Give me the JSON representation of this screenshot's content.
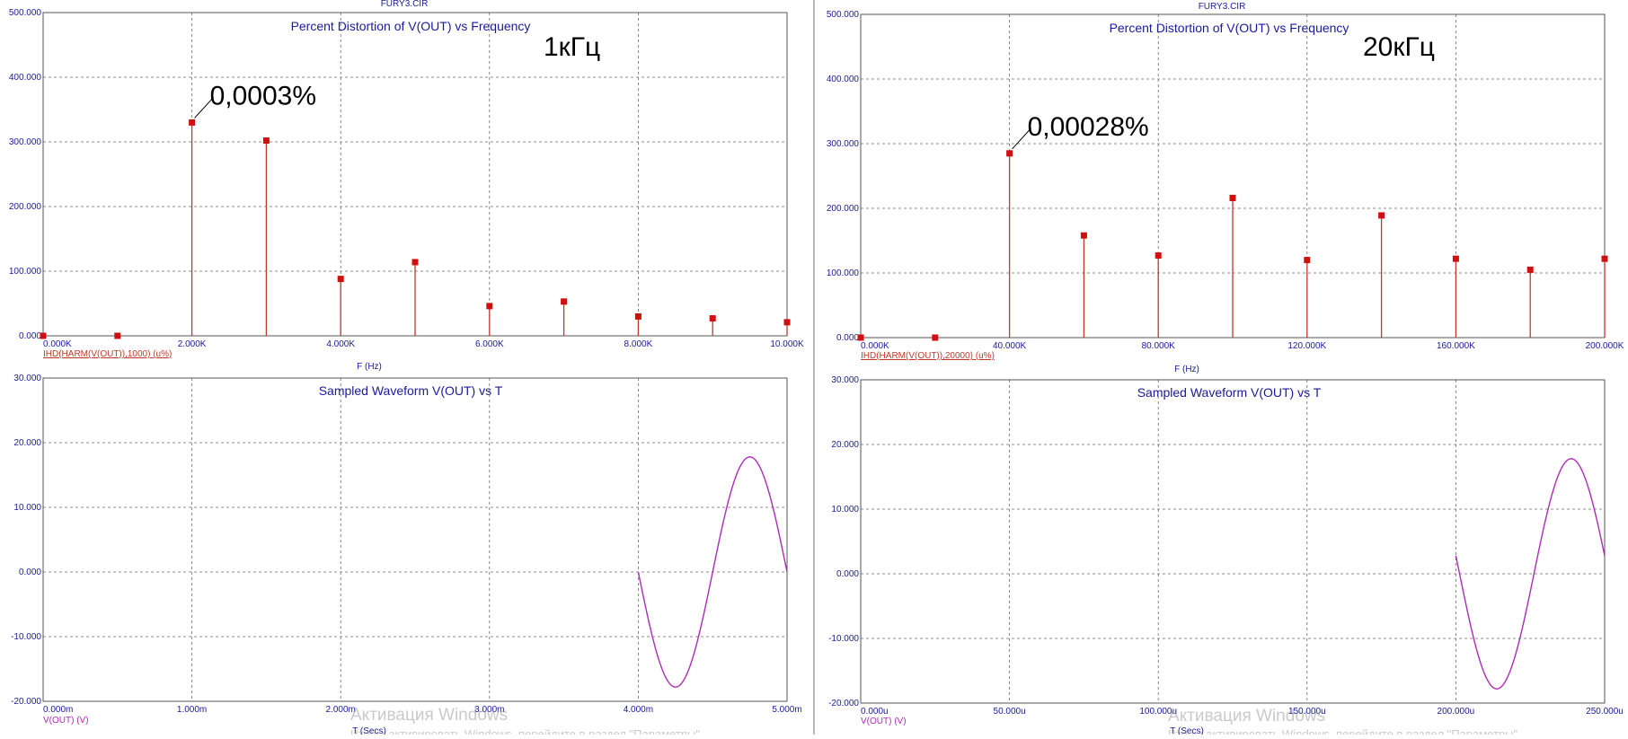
{
  "watermark": {
    "left": {
      "line1": "Активация Windows",
      "line2": "Чтобы активировать Windows, перейдите в раздел \"Параметры\"."
    },
    "right": {
      "line1": "Активация Windows",
      "line2": "Чтобы активировать Windows, перейдите в раздел \"Параметры\"."
    }
  },
  "colors": {
    "axis_text": "#1a1a9a",
    "stem": "#c0392b",
    "marker": "#d01010",
    "wave": "#b02ab8",
    "grid": "#6a6a6a",
    "annotation": "#000000"
  },
  "chart_data": [
    {
      "type": "stem",
      "file_title": "FURY3.CIR",
      "title": "Percent Distortion of V(OUT) vs Frequency",
      "freq_label": "1кГц",
      "annotation": {
        "text": "0,0003%",
        "x": 2000,
        "y": 330
      },
      "xlabel": "F (Hz)",
      "series_label": "IHD(HARM(V(OUT)),1000) (u%)",
      "xlim": [
        0,
        10000
      ],
      "ylim": [
        0,
        500
      ],
      "x_tick_labels": [
        "0.000K",
        "2.000K",
        "4.000K",
        "6.000K",
        "8.000K",
        "10.000K"
      ],
      "y_tick_labels": [
        "500.000",
        "400.000",
        "300.000",
        "200.000",
        "100.000",
        "0.000"
      ],
      "x": [
        0,
        1000,
        2000,
        3000,
        4000,
        5000,
        6000,
        7000,
        8000,
        9000,
        10000
      ],
      "values": [
        0,
        0,
        330,
        302,
        88,
        114,
        46,
        53,
        30,
        27,
        21
      ]
    },
    {
      "type": "stem",
      "file_title": "FURY3.CIR",
      "title": "Percent Distortion of V(OUT) vs Frequency",
      "freq_label": "20кГц",
      "annotation": {
        "text": "0,00028%",
        "x": 40000,
        "y": 285
      },
      "xlabel": "F (Hz)",
      "series_label": "IHD(HARM(V(OUT)),20000) (u%)",
      "xlim": [
        0,
        200000
      ],
      "ylim": [
        0,
        500
      ],
      "x_tick_labels": [
        "0.000K",
        "40.000K",
        "80.000K",
        "120.000K",
        "160.000K",
        "200.000K"
      ],
      "y_tick_labels": [
        "500.000",
        "400.000",
        "300.000",
        "200.000",
        "100.000",
        "0.000"
      ],
      "x": [
        0,
        20000,
        40000,
        60000,
        80000,
        100000,
        120000,
        140000,
        160000,
        180000,
        200000
      ],
      "values": [
        0,
        0,
        285,
        158,
        127,
        216,
        120,
        189,
        122,
        105,
        122
      ]
    },
    {
      "type": "line",
      "title": "Sampled Waveform  V(OUT) vs T",
      "xlabel": "T (Secs)",
      "series_label": "V(OUT) (V)",
      "xlim": [
        0,
        5
      ],
      "ylim": [
        -20,
        30
      ],
      "x_tick_labels": [
        "0.000m",
        "1.000m",
        "2.000m",
        "3.000m",
        "4.000m",
        "5.000m"
      ],
      "y_tick_labels": [
        "30.000",
        "20.000",
        "10.000",
        "0.000",
        "-10.000",
        "-20.000"
      ],
      "wave": {
        "start": 4,
        "end": 5,
        "amplitude": 17.8,
        "period": 1,
        "phase_deg": 180,
        "offset": 0
      }
    },
    {
      "type": "line",
      "title": "Sampled Waveform  V(OUT) vs T",
      "xlabel": "T (Secs)",
      "series_label": "V(OUT) (V)",
      "xlim": [
        0,
        250
      ],
      "ylim": [
        -20,
        30
      ],
      "x_tick_labels": [
        "0.000u",
        "50.000u",
        "100.000u",
        "150.000u",
        "200.000u",
        "250.000u"
      ],
      "y_tick_labels": [
        "30.000",
        "20.000",
        "10.000",
        "0.000",
        "-10.000",
        "-20.000"
      ],
      "wave": {
        "start": 200,
        "end": 250,
        "amplitude": 17.8,
        "period": 50,
        "phase_deg": 171,
        "offset": 0
      }
    }
  ]
}
